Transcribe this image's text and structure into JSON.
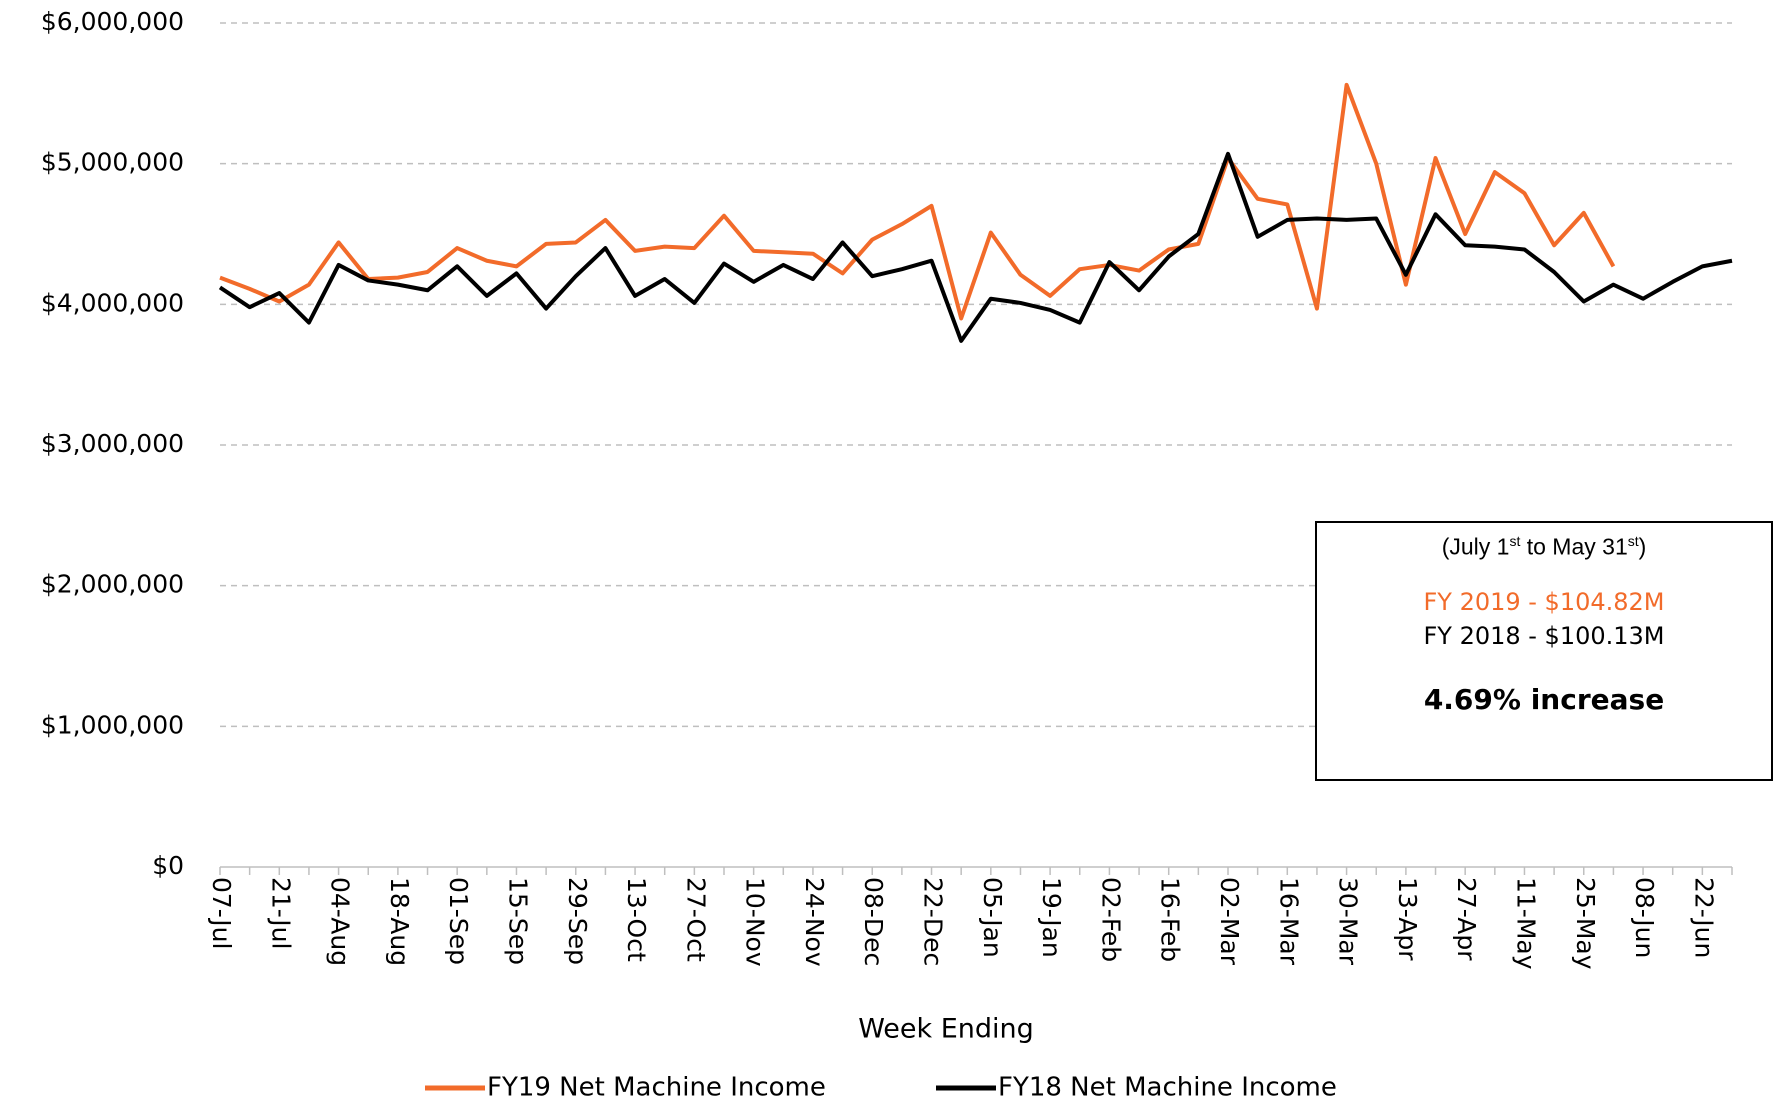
{
  "chart_data": {
    "type": "line",
    "x_label": "Week Ending",
    "categories": [
      "07-Jul",
      null,
      "21-Jul",
      null,
      "04-Aug",
      null,
      "18-Aug",
      null,
      "01-Sep",
      null,
      "15-Sep",
      null,
      "29-Sep",
      null,
      "13-Oct",
      null,
      "27-Oct",
      null,
      "10-Nov",
      null,
      "24-Nov",
      null,
      "08-Dec",
      null,
      "22-Dec",
      null,
      "05-Jan",
      null,
      "19-Jan",
      null,
      "02-Feb",
      null,
      "16-Feb",
      null,
      "02-Mar",
      null,
      "16-Mar",
      null,
      "30-Mar",
      null,
      "13-Apr",
      null,
      "27-Apr",
      null,
      "11-May",
      null,
      "25-May",
      null,
      "08-Jun",
      null,
      "22-Jun",
      null
    ],
    "series": [
      {
        "name": "FY19 Net Machine Income",
        "color": "#f26b2a",
        "values": [
          4190000,
          4110000,
          4020000,
          4140000,
          4440000,
          4180000,
          4190000,
          4230000,
          4400000,
          4310000,
          4270000,
          4430000,
          4440000,
          4600000,
          4380000,
          4410000,
          4400000,
          4630000,
          4380000,
          4370000,
          4360000,
          4220000,
          4460000,
          4570000,
          4700000,
          3900000,
          4510000,
          4210000,
          4060000,
          4250000,
          4280000,
          4240000,
          4390000,
          4430000,
          5040000,
          4750000,
          4710000,
          3970000,
          5560000,
          5000000,
          4140000,
          5040000,
          4500000,
          4940000,
          4790000,
          4420000,
          4650000,
          4270000,
          null,
          null,
          null,
          null
        ]
      },
      {
        "name": "FY18 Net Machine Income",
        "color": "#000000",
        "values": [
          4120000,
          3980000,
          4080000,
          3870000,
          4280000,
          4170000,
          4140000,
          4100000,
          4270000,
          4060000,
          4220000,
          3970000,
          4200000,
          4400000,
          4060000,
          4180000,
          4010000,
          4290000,
          4160000,
          4280000,
          4180000,
          4440000,
          4200000,
          4250000,
          4310000,
          3740000,
          4040000,
          4010000,
          3960000,
          3870000,
          4300000,
          4100000,
          4340000,
          4500000,
          5070000,
          4480000,
          4600000,
          4610000,
          4600000,
          4610000,
          4210000,
          4640000,
          4420000,
          4410000,
          4390000,
          4230000,
          4020000,
          4140000,
          4040000,
          4160000,
          4270000,
          4310000
        ]
      }
    ],
    "ylim": [
      0,
      6000000
    ],
    "yticks": [
      {
        "value": 0,
        "label": "$0"
      },
      {
        "value": 1000000,
        "label": "$1,000,000"
      },
      {
        "value": 2000000,
        "label": "$2,000,000"
      },
      {
        "value": 3000000,
        "label": "$3,000,000"
      },
      {
        "value": 4000000,
        "label": "$4,000,000"
      },
      {
        "value": 5000000,
        "label": "$5,000,000"
      },
      {
        "value": 6000000,
        "label": "$6,000,000"
      }
    ],
    "grid": true,
    "legend": "bottom",
    "annotation": {
      "period": [
        "(July 1",
        "st",
        " to May 31",
        "st",
        ")"
      ],
      "fy2019": "FY 2019 - $104.82M",
      "fy2018": "FY 2018 - $100.13M",
      "change": "4.69% increase"
    }
  }
}
